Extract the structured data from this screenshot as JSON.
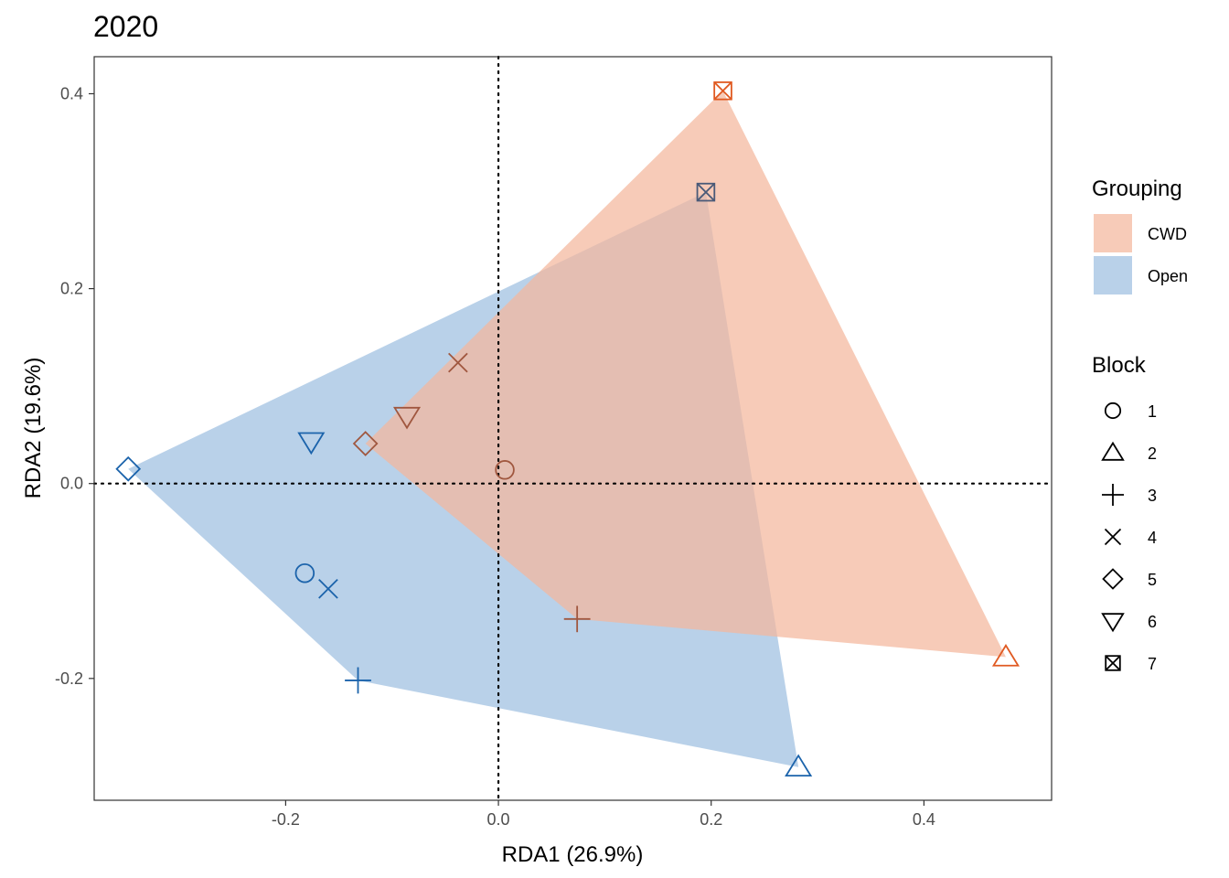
{
  "chart_data": {
    "type": "scatter",
    "title": "2020",
    "xlabel": "RDA1 (26.9%)",
    "ylabel": "RDA2 (19.6%)",
    "xlim": [
      -0.38,
      0.52
    ],
    "ylim": [
      -0.325,
      0.438
    ],
    "x_ticks": [
      -0.2,
      0.0,
      0.2,
      0.4
    ],
    "x_tick_labels": [
      "-0.2",
      "0.0",
      "0.2",
      "0.4"
    ],
    "y_ticks": [
      -0.2,
      0.0,
      0.2,
      0.4
    ],
    "y_tick_labels": [
      "-0.2",
      "0.0",
      "0.2",
      "0.4"
    ],
    "grid": false,
    "reference_lines": {
      "x": 0,
      "y": 0,
      "style": "dotted"
    },
    "groups": [
      {
        "name": "CWD",
        "fill": "#f4b79d",
        "marker_color": "#c8502a"
      },
      {
        "name": "Open",
        "fill": "#9ebfe0",
        "marker_color": "#1b63ab"
      }
    ],
    "hulls": [
      {
        "group": "Open",
        "vertices": [
          [
            -0.348,
            0.015
          ],
          [
            0.195,
            0.299
          ],
          [
            0.282,
            -0.291
          ],
          [
            -0.132,
            -0.202
          ]
        ]
      },
      {
        "group": "CWD",
        "vertices": [
          [
            0.211,
            0.403
          ],
          [
            0.477,
            -0.178
          ],
          [
            0.074,
            -0.139
          ],
          [
            -0.125,
            0.041
          ]
        ]
      }
    ],
    "points": [
      {
        "group": "CWD",
        "block": "1",
        "x": 0.006,
        "y": 0.014,
        "color": "#a0573f"
      },
      {
        "group": "CWD",
        "block": "2",
        "x": 0.477,
        "y": -0.178,
        "color": "#e05a22"
      },
      {
        "group": "CWD",
        "block": "3",
        "x": 0.074,
        "y": -0.139,
        "color": "#a0573f"
      },
      {
        "group": "CWD",
        "block": "4",
        "x": -0.038,
        "y": 0.124,
        "color": "#a0573f"
      },
      {
        "group": "CWD",
        "block": "5",
        "x": -0.125,
        "y": 0.041,
        "color": "#a0573f"
      },
      {
        "group": "CWD",
        "block": "6",
        "x": -0.086,
        "y": 0.069,
        "color": "#a0573f"
      },
      {
        "group": "CWD",
        "block": "7",
        "x": 0.211,
        "y": 0.403,
        "color": "#e05a22"
      },
      {
        "group": "Open",
        "block": "1",
        "x": -0.182,
        "y": -0.092,
        "color": "#1b63ab"
      },
      {
        "group": "Open",
        "block": "2",
        "x": 0.282,
        "y": -0.291,
        "color": "#1b63ab"
      },
      {
        "group": "Open",
        "block": "3",
        "x": -0.132,
        "y": -0.202,
        "color": "#1b63ab"
      },
      {
        "group": "Open",
        "block": "4",
        "x": -0.16,
        "y": -0.108,
        "color": "#1b63ab"
      },
      {
        "group": "Open",
        "block": "5",
        "x": -0.348,
        "y": 0.015,
        "color": "#1b63ab"
      },
      {
        "group": "Open",
        "block": "6",
        "x": -0.176,
        "y": 0.043,
        "color": "#1b63ab"
      },
      {
        "group": "Open",
        "block": "7",
        "x": 0.195,
        "y": 0.299,
        "color": "#4a5a78"
      }
    ],
    "legend": {
      "placement": "right",
      "grouping": {
        "title": "Grouping",
        "entries": [
          "CWD",
          "Open"
        ]
      },
      "block": {
        "title": "Block",
        "entries": [
          {
            "label": "1",
            "shape": "circle"
          },
          {
            "label": "2",
            "shape": "triangle-up"
          },
          {
            "label": "3",
            "shape": "plus"
          },
          {
            "label": "4",
            "shape": "cross"
          },
          {
            "label": "5",
            "shape": "diamond"
          },
          {
            "label": "6",
            "shape": "triangle-down"
          },
          {
            "label": "7",
            "shape": "square-cross"
          }
        ]
      }
    }
  }
}
